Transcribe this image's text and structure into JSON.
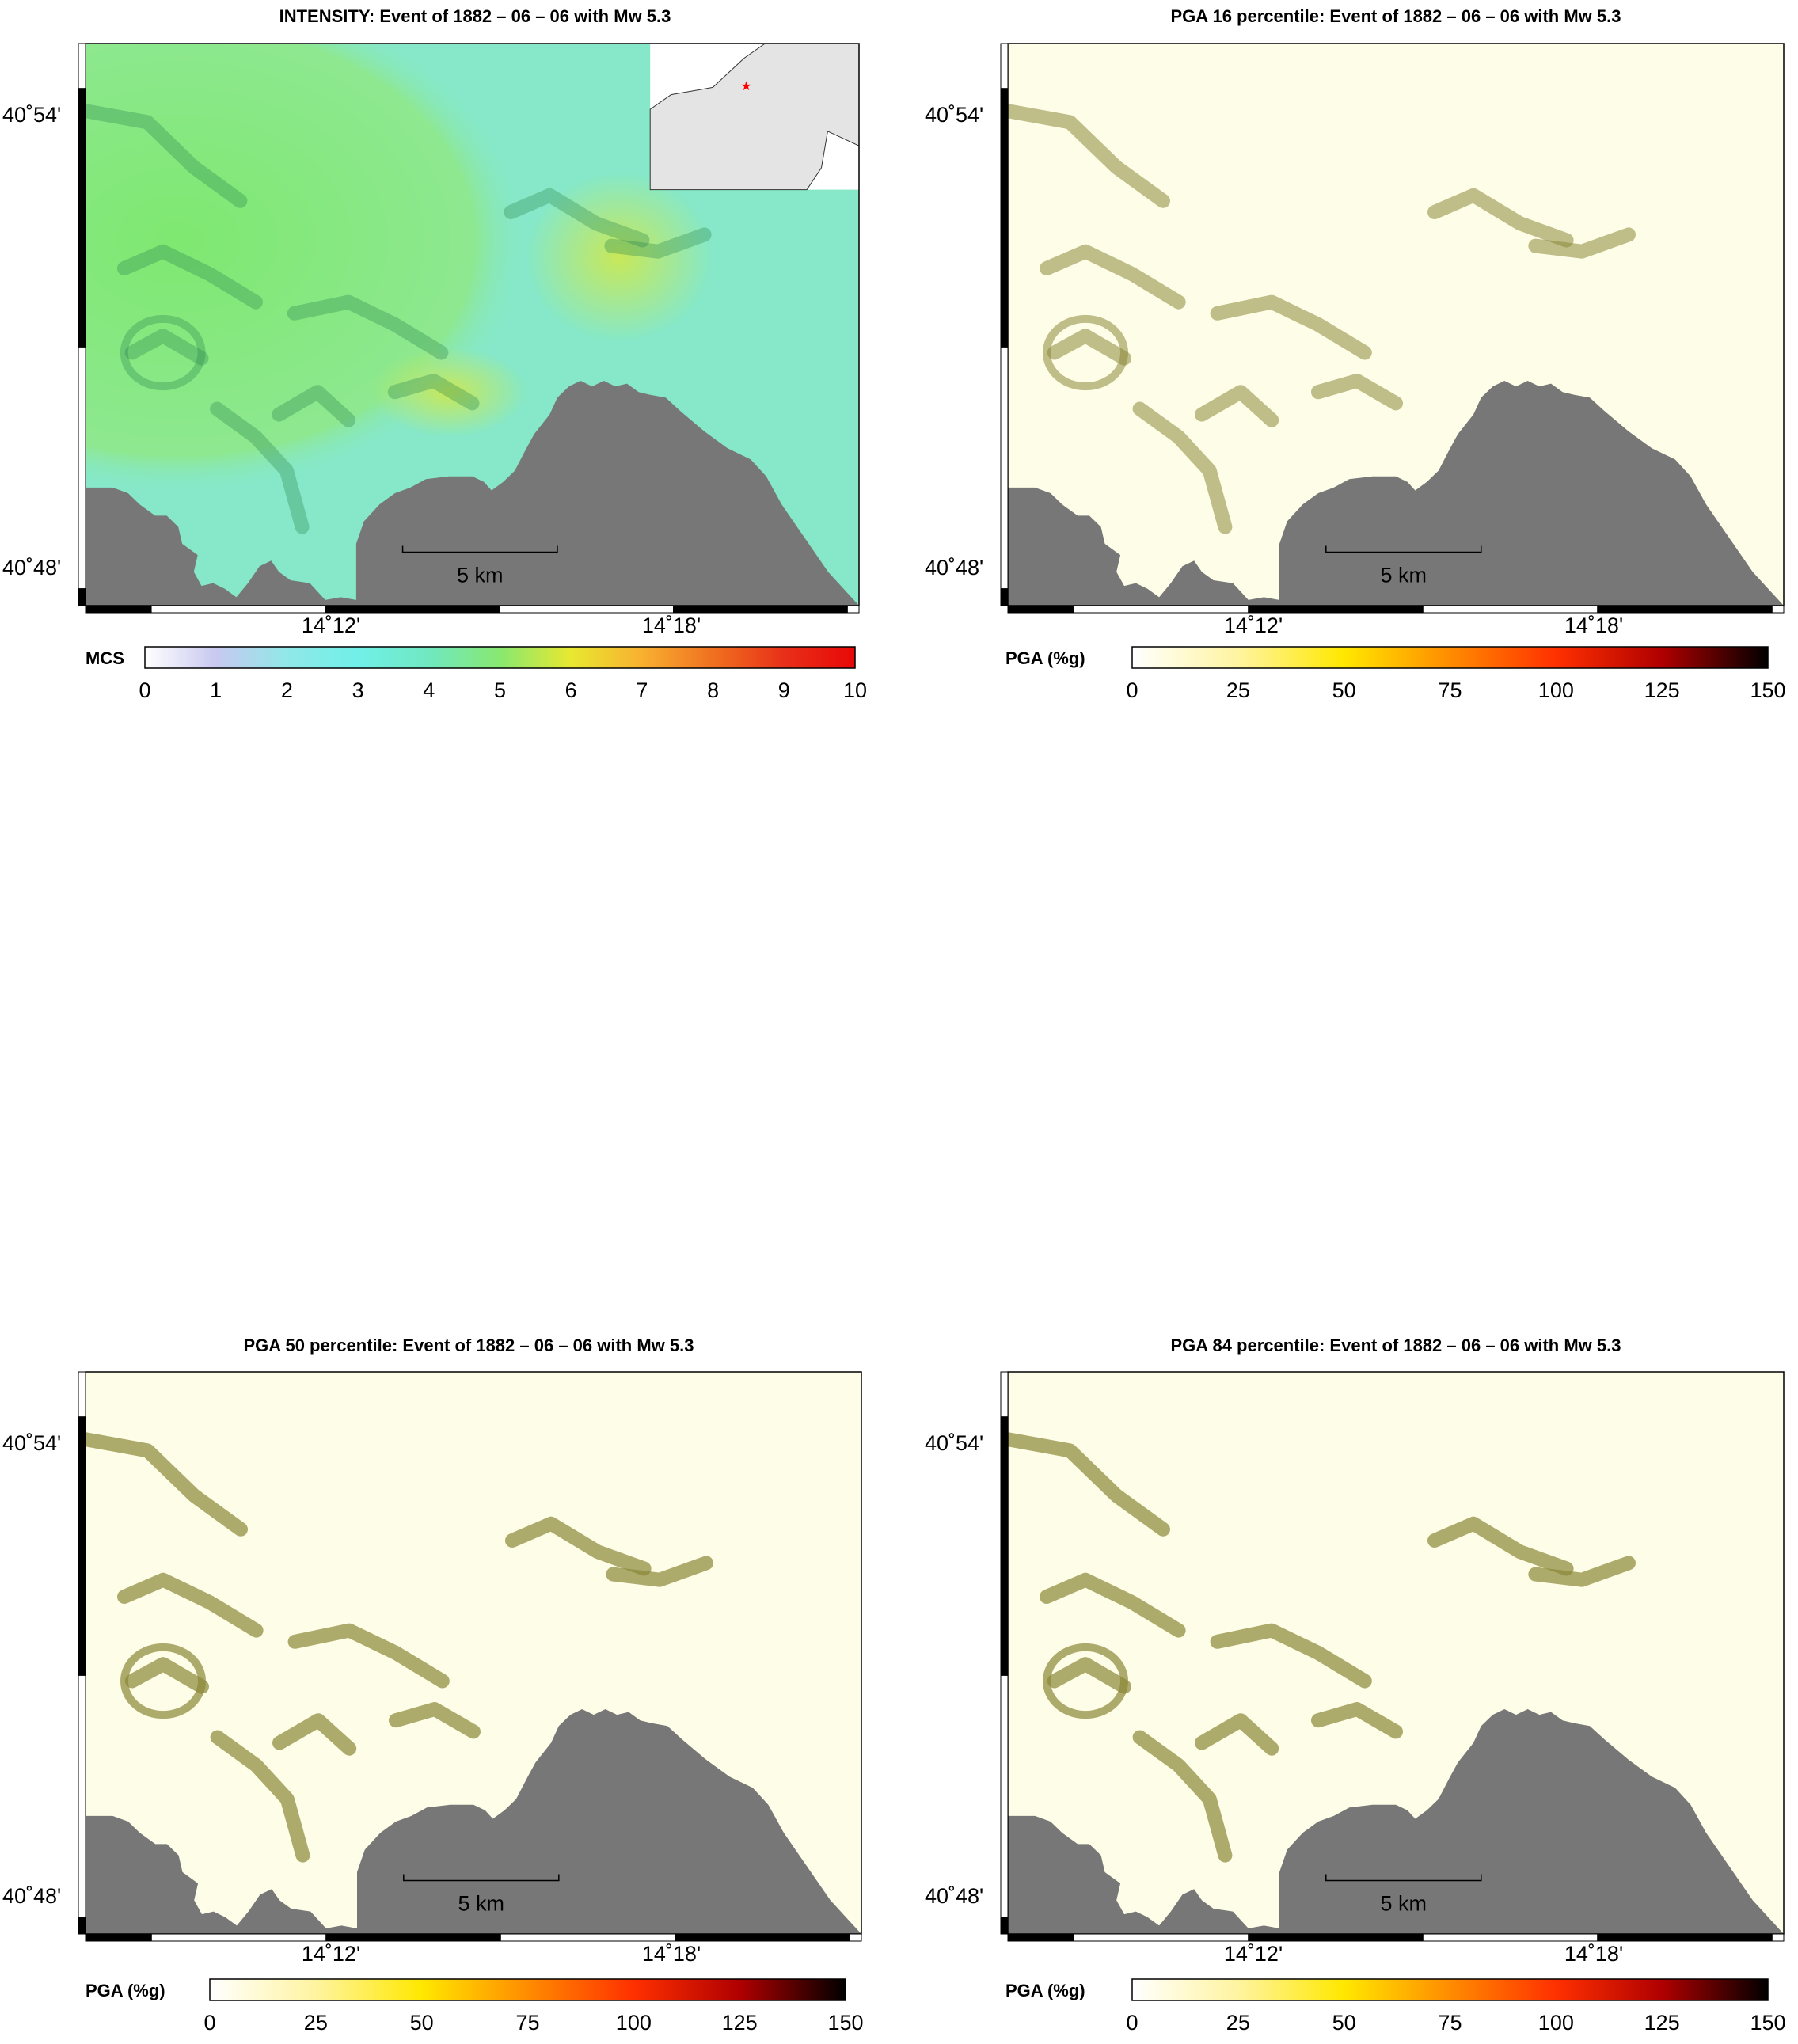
{
  "panels": [
    {
      "title": "INTENSITY: Event of 1882 – 06 – 06 with Mw 5.3",
      "y_labels": [
        "40˚54'",
        "40˚48'"
      ],
      "x_labels": [
        "14˚12'",
        "14˚18'"
      ],
      "scale_label": "5 km",
      "colorbar_title": "MCS",
      "colorbar_ticks": [
        "0",
        "1",
        "2",
        "3",
        "4",
        "5",
        "6",
        "7",
        "8",
        "9",
        "10"
      ],
      "colorbar_colors": [
        "#ffffff",
        "#c8c8f0",
        "#90e8e8",
        "#70f0e8",
        "#70e8c0",
        "#88e870",
        "#e8e830",
        "#f8b030",
        "#f07020",
        "#e83018",
        "#e80808"
      ],
      "kind": "intensity",
      "inset": true
    },
    {
      "title": "PGA 16 percentile: Event of 1882 – 06 – 06 with Mw 5.3",
      "y_labels": [
        "40˚54'",
        "40˚48'"
      ],
      "x_labels": [
        "14˚12'",
        "14˚18'"
      ],
      "scale_label": "5 km",
      "colorbar_title": "PGA (%g)",
      "colorbar_ticks": [
        "0",
        "25",
        "50",
        "75",
        "100",
        "125",
        "150"
      ],
      "colorbar_colors": [
        "#ffffff",
        "#fff4a0",
        "#ffe800",
        "#ff8c00",
        "#ff3000",
        "#b00000",
        "#000000"
      ],
      "kind": "pga",
      "inset": false
    },
    {
      "title": "PGA 50 percentile: Event of 1882 – 06 – 06 with Mw 5.3",
      "y_labels": [
        "40˚54'",
        "40˚48'"
      ],
      "x_labels": [
        "14˚12'",
        "14˚18'"
      ],
      "scale_label": "5 km",
      "colorbar_title": "PGA (%g)",
      "colorbar_ticks": [
        "0",
        "25",
        "50",
        "75",
        "100",
        "125",
        "150"
      ],
      "colorbar_colors": [
        "#ffffff",
        "#fff4a0",
        "#ffe800",
        "#ff8c00",
        "#ff3000",
        "#b00000",
        "#000000"
      ],
      "kind": "pga",
      "inset": false
    },
    {
      "title": "PGA 84 percentile: Event of 1882 – 06 – 06 with Mw 5.3",
      "y_labels": [
        "40˚54'",
        "40˚48'"
      ],
      "x_labels": [
        "14˚12'",
        "14˚18'"
      ],
      "scale_label": "5 km",
      "colorbar_title": "PGA (%g)",
      "colorbar_ticks": [
        "0",
        "25",
        "50",
        "75",
        "100",
        "125",
        "150"
      ],
      "colorbar_colors": [
        "#ffffff",
        "#fff4a0",
        "#ffe800",
        "#ff8c00",
        "#ff3000",
        "#b00000",
        "#000000"
      ],
      "kind": "pga",
      "inset": false
    }
  ],
  "colors": {
    "sea": "#777777",
    "frame": "#000000",
    "intensity_base": "#86e8c8",
    "intensity_land": "#7ee870",
    "intensity_high": "#c8e858",
    "pga_base": "#fefde8",
    "pga_shade": "#8a8838",
    "epicenter_star": "#ff0000"
  }
}
